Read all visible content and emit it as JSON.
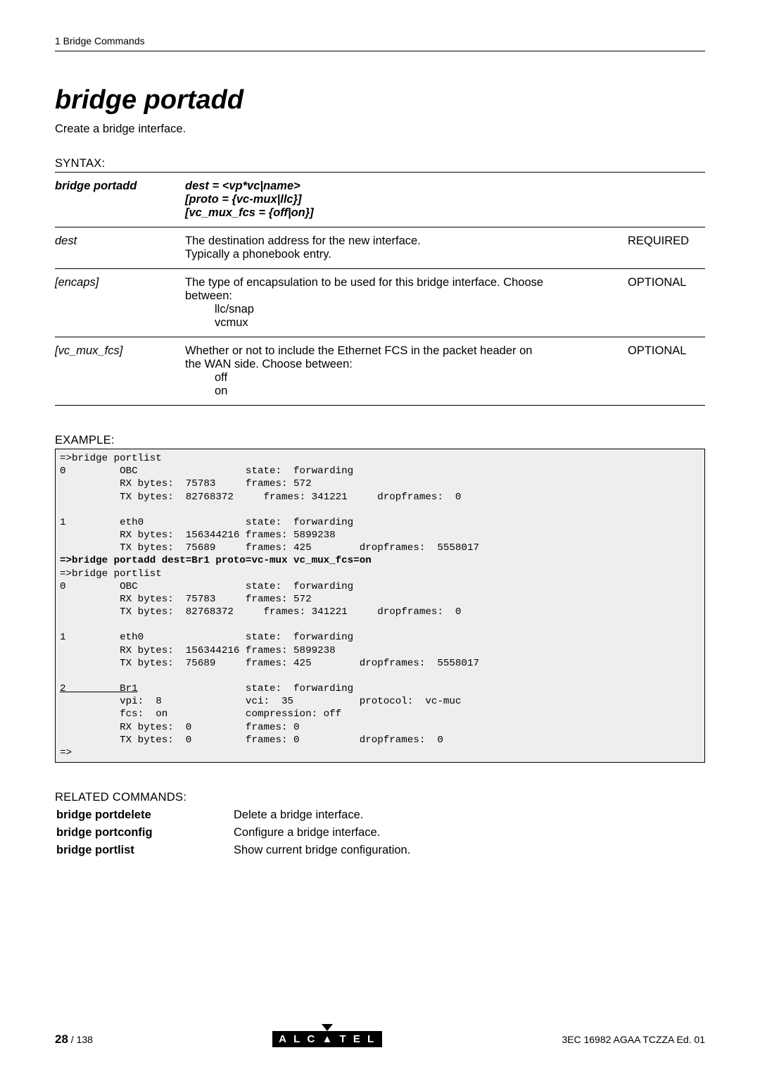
{
  "chapter": "1  Bridge Commands",
  "title": "bridge portadd",
  "desc": "Create a bridge interface.",
  "syntax": {
    "heading": "SYNTAX:",
    "cmd": "bridge portadd",
    "args_l1": "dest = <vp*vc|name>",
    "args_l2": "[proto = {vc-mux|llc}]",
    "args_l3": "[vc_mux_fcs = {off|on}]",
    "rows": [
      {
        "param": "dest",
        "text": "The destination address for the new interface.\nTypically a phonebook entry.",
        "req": "REQUIRED"
      },
      {
        "param": "[encaps]",
        "text": "The type of encapsulation to be used for this bridge interface. Choose between:",
        "sub": [
          "llc/snap",
          "vcmux"
        ],
        "req": "OPTIONAL"
      },
      {
        "param": "[vc_mux_fcs]",
        "text": "Whether or not to include the Ethernet FCS in the packet header on the WAN side. Choose between:",
        "sub": [
          "off",
          "on"
        ],
        "req": "OPTIONAL"
      }
    ]
  },
  "example": {
    "heading": "EXAMPLE:",
    "text": "=>bridge portlist\n0         OBC                  state:  forwarding\n          RX bytes:  75783     frames: 572\n          TX bytes:  82768372     frames: 341221     dropframes:  0\n\n1         eth0                 state:  forwarding\n          RX bytes:  156344216 frames: 5899238\n          TX bytes:  75689     frames: 425        dropframes:  5558017\n",
    "bold": "=>bridge portadd dest=Br1 proto=vc-mux vc_mux_fcs=on\n",
    "text2": "=>bridge portlist\n0         OBC                  state:  forwarding\n          RX bytes:  75783     frames: 572\n          TX bytes:  82768372     frames: 341221     dropframes:  0\n\n1         eth0                 state:  forwarding\n          RX bytes:  156344216 frames: 5899238\n          TX bytes:  75689     frames: 425        dropframes:  5558017\n\n",
    "uline": "2         Br1",
    "text3": "                  state:  forwarding\n          vpi:  8              vci:  35           protocol:  vc-muc\n          fcs:  on             compression: off\n          RX bytes:  0         frames: 0\n          TX bytes:  0         frames: 0          dropframes:  0\n=>"
  },
  "related": {
    "heading": "RELATED COMMANDS:",
    "rows": [
      {
        "k": "bridge portdelete",
        "v": "Delete a bridge interface."
      },
      {
        "k": "bridge portconfig",
        "v": "Configure a bridge interface."
      },
      {
        "k": "bridge portlist",
        "v": "Show current bridge configuration."
      }
    ]
  },
  "footer": {
    "page": "28",
    "total": " / 138",
    "logo": "A L C ▲ T E L",
    "right": "3EC 16982 AGAA TCZZA Ed. 01"
  }
}
